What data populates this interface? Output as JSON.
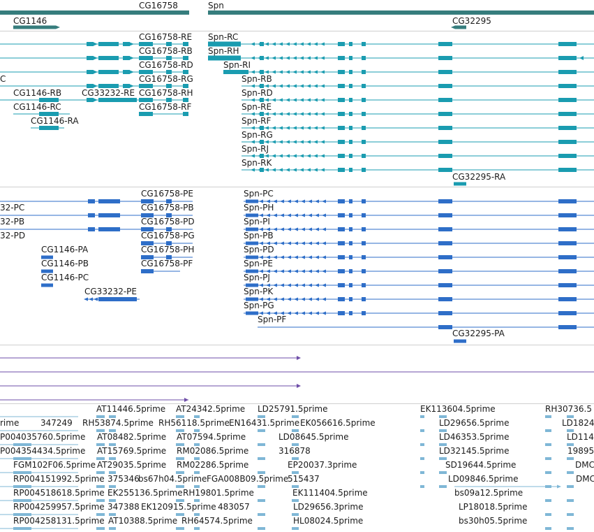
{
  "colors": {
    "gene": "#367d7d",
    "transcript": "#1a9cb0",
    "protein": "#2e6ec8",
    "purple": "#6e4ea8",
    "est": "#7fb7d6",
    "divider": "#cfcfcf"
  },
  "genes": [
    {
      "label": "CG16758"
    },
    {
      "label": "Spn"
    },
    {
      "label": "CG1146"
    },
    {
      "label": "CG32295"
    }
  ],
  "transcript_labels": [
    "C",
    "CG16758-RE",
    "CG16758-RB",
    "CG16758-RD",
    "CG16758-RG",
    "CG16758-RH",
    "CG16758-RF",
    "CG1146-RB",
    "CG1146-RC",
    "CG1146-RA",
    "CG33232-RE",
    "Spn-RC",
    "Spn-RH",
    "Spn-RI",
    "Spn-RB",
    "Spn-RD",
    "Spn-RE",
    "Spn-RF",
    "Spn-RG",
    "Spn-RJ",
    "Spn-RK",
    "CG32295-RA"
  ],
  "protein_labels": [
    "32-PC",
    "32-PB",
    "32-PD",
    "CG16758-PE",
    "CG16758-PB",
    "CG16758-PD",
    "CG16758-PG",
    "CG16758-PH",
    "CG16758-PF",
    "CG1146-PA",
    "CG1146-PB",
    "CG1146-PC",
    "CG33232-PE",
    "Spn-PC",
    "Spn-PH",
    "Spn-PI",
    "Spn-PB",
    "Spn-PD",
    "Spn-PE",
    "Spn-PJ",
    "Spn-PK",
    "Spn-PG",
    "Spn-PF",
    "CG32295-PA"
  ],
  "est_labels": [
    "AT11446.5prime",
    "AT24342.5prime",
    "LD25791.5prime",
    "EK113604.5prime",
    "RH30736.5",
    "rime",
    "347249",
    "RH53874.5prime",
    "RH56118.5prime",
    "EN16431.5prime",
    "EK056616.5prime",
    "LD29656.5prime",
    "LD1824",
    "P004035760.5prime",
    "AT08482.5prime",
    "AT07594.5prime",
    "LD08645.5prime",
    "LD46353.5prime",
    "LD114",
    "P004354434.5prime",
    "AT15769.5prime",
    "RM02086.5prime",
    "316878",
    "LD32145.5prime",
    "19895",
    "FGM102F06.5prime",
    "AT29035.5prime",
    "RM02286.5prime",
    "EP20037.3prime",
    "SD19644.5prime",
    "DMC",
    "RP004151992.5prime",
    "375346",
    "bs67h04.5prime",
    "FGA008B09.5prime",
    "515437",
    "LD09846.5prime",
    "DMC",
    "RP004518618.5prime",
    "EK255136.5prime",
    "RH19801.5prime",
    "EK111404.5prime",
    "bs09a12.5prime",
    "RP004259957.5prime",
    "347388",
    "EK120915.5prime",
    "483057",
    "LD29656.3prime",
    "LP18018.5prime",
    "RP004258131.5prime",
    "AT10388.5prime",
    "RH64574.5prime",
    "HL08024.5prime",
    "bs30h05.5prime"
  ]
}
